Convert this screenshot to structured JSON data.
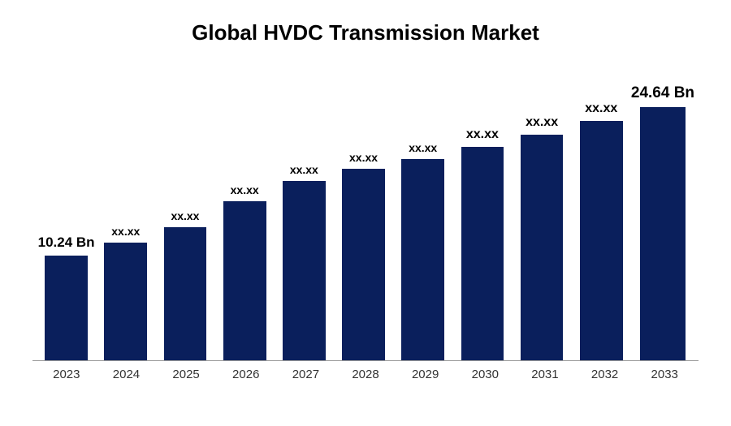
{
  "chart": {
    "type": "bar",
    "title": "Global HVDC Transmission Market",
    "title_fontsize": 26,
    "title_color": "#000000",
    "background_color": "#ffffff",
    "categories": [
      "2023",
      "2024",
      "2025",
      "2026",
      "2027",
      "2028",
      "2029",
      "2030",
      "2031",
      "2032",
      "2033"
    ],
    "values": [
      10.24,
      11.5,
      13.0,
      15.5,
      17.5,
      18.7,
      19.6,
      20.8,
      22.0,
      23.3,
      24.64
    ],
    "value_labels": [
      "10.24 Bn",
      "xx.xx",
      "xx.xx",
      "xx.xx",
      "xx.xx",
      "xx.xx",
      "xx.xx",
      "xx.xx",
      "xx.xx",
      "xx.xx",
      "24.64 Bn"
    ],
    "label_fontsizes": [
      17,
      14,
      14,
      14,
      14,
      14,
      14,
      16,
      16,
      16,
      19
    ],
    "label_fontweights": [
      "bold",
      "bold",
      "bold",
      "bold",
      "bold",
      "bold",
      "bold",
      "bold",
      "bold",
      "bold",
      "bold"
    ],
    "bar_color": "#0a1f5c",
    "bar_width": 0.72,
    "ylim": [
      0,
      28
    ],
    "axis_color": "#999999",
    "x_label_fontsize": 15,
    "x_label_color": "#333333"
  }
}
